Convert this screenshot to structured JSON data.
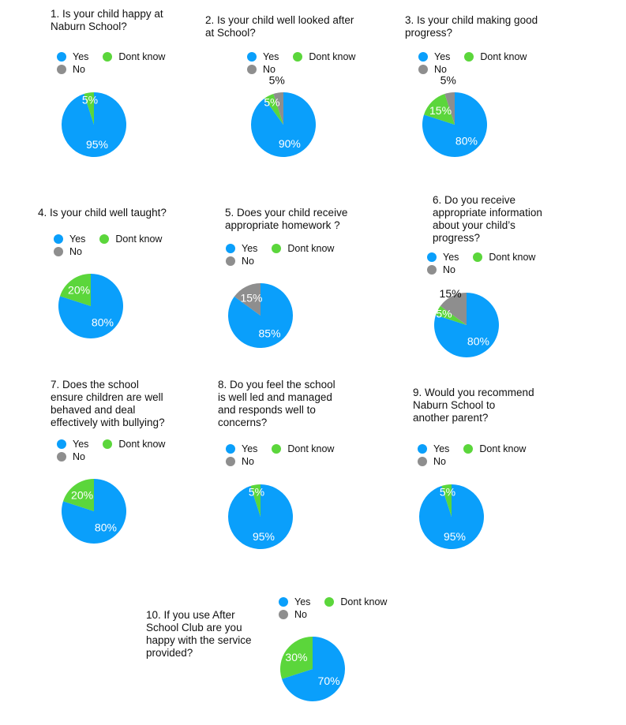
{
  "colors": {
    "yes": "#0a9ffb",
    "dont_know": "#5bd63b",
    "no": "#8e8e8e"
  },
  "legend": {
    "yes": "Yes",
    "dont_know": "Dont know",
    "no": "No"
  },
  "chart_data": [
    {
      "type": "pie",
      "title": "1. Is your child happy at\nNaburn School?",
      "slices": [
        {
          "name": "Yes",
          "value": 95,
          "label": "95%"
        },
        {
          "name": "Dont know",
          "value": 5,
          "label": "5%"
        },
        {
          "name": "No",
          "value": 0,
          "label": ""
        }
      ]
    },
    {
      "type": "pie",
      "title": "2. Is your child well looked after\nat School?",
      "slices": [
        {
          "name": "Yes",
          "value": 90,
          "label": "90%"
        },
        {
          "name": "Dont know",
          "value": 5,
          "label": "5%"
        },
        {
          "name": "No",
          "value": 5,
          "label": "5%"
        }
      ]
    },
    {
      "type": "pie",
      "title": "3. Is your child making good\nprogress?",
      "slices": [
        {
          "name": "Yes",
          "value": 80,
          "label": "80%"
        },
        {
          "name": "Dont know",
          "value": 15,
          "label": "15%"
        },
        {
          "name": "No",
          "value": 5,
          "label": "5%"
        }
      ]
    },
    {
      "type": "pie",
      "title": "4. Is your child well taught?",
      "slices": [
        {
          "name": "Yes",
          "value": 80,
          "label": "80%"
        },
        {
          "name": "Dont know",
          "value": 20,
          "label": "20%"
        },
        {
          "name": "No",
          "value": 0,
          "label": ""
        }
      ]
    },
    {
      "type": "pie",
      "title": "5. Does your child receive\nappropriate homework ?",
      "slices": [
        {
          "name": "Yes",
          "value": 85,
          "label": "85%"
        },
        {
          "name": "Dont know",
          "value": 0,
          "label": ""
        },
        {
          "name": "No",
          "value": 15,
          "label": "15%"
        }
      ]
    },
    {
      "type": "pie",
      "title": "6. Do you receive\nappropriate information\nabout your child’s\nprogress?",
      "slices": [
        {
          "name": "Yes",
          "value": 80,
          "label": "80%"
        },
        {
          "name": "Dont know",
          "value": 5,
          "label": "5%"
        },
        {
          "name": "No",
          "value": 15,
          "label": "15%"
        }
      ]
    },
    {
      "type": "pie",
      "title": "7. Does the school\nensure children are well\nbehaved and deal\neffectively with bullying?",
      "slices": [
        {
          "name": "Yes",
          "value": 80,
          "label": "80%"
        },
        {
          "name": "Dont know",
          "value": 20,
          "label": "20%"
        },
        {
          "name": "No",
          "value": 0,
          "label": ""
        }
      ]
    },
    {
      "type": "pie",
      "title": "8. Do you feel the school\nis well led and managed\nand responds well to\nconcerns?",
      "slices": [
        {
          "name": "Yes",
          "value": 95,
          "label": "95%"
        },
        {
          "name": "Dont know",
          "value": 5,
          "label": "5%"
        },
        {
          "name": "No",
          "value": 0,
          "label": ""
        }
      ]
    },
    {
      "type": "pie",
      "title": "9. Would you recommend\nNaburn School to\nanother parent?",
      "slices": [
        {
          "name": "Yes",
          "value": 95,
          "label": "95%"
        },
        {
          "name": "Dont know",
          "value": 5,
          "label": "5%"
        },
        {
          "name": "No",
          "value": 0,
          "label": ""
        }
      ]
    },
    {
      "type": "pie",
      "title": "10. If you use After\nSchool Club are you\nhappy with the service\nprovided?",
      "slices": [
        {
          "name": "Yes",
          "value": 70,
          "label": "70%"
        },
        {
          "name": "Dont know",
          "value": 30,
          "label": "30%"
        },
        {
          "name": "No",
          "value": 0,
          "label": ""
        }
      ]
    }
  ]
}
